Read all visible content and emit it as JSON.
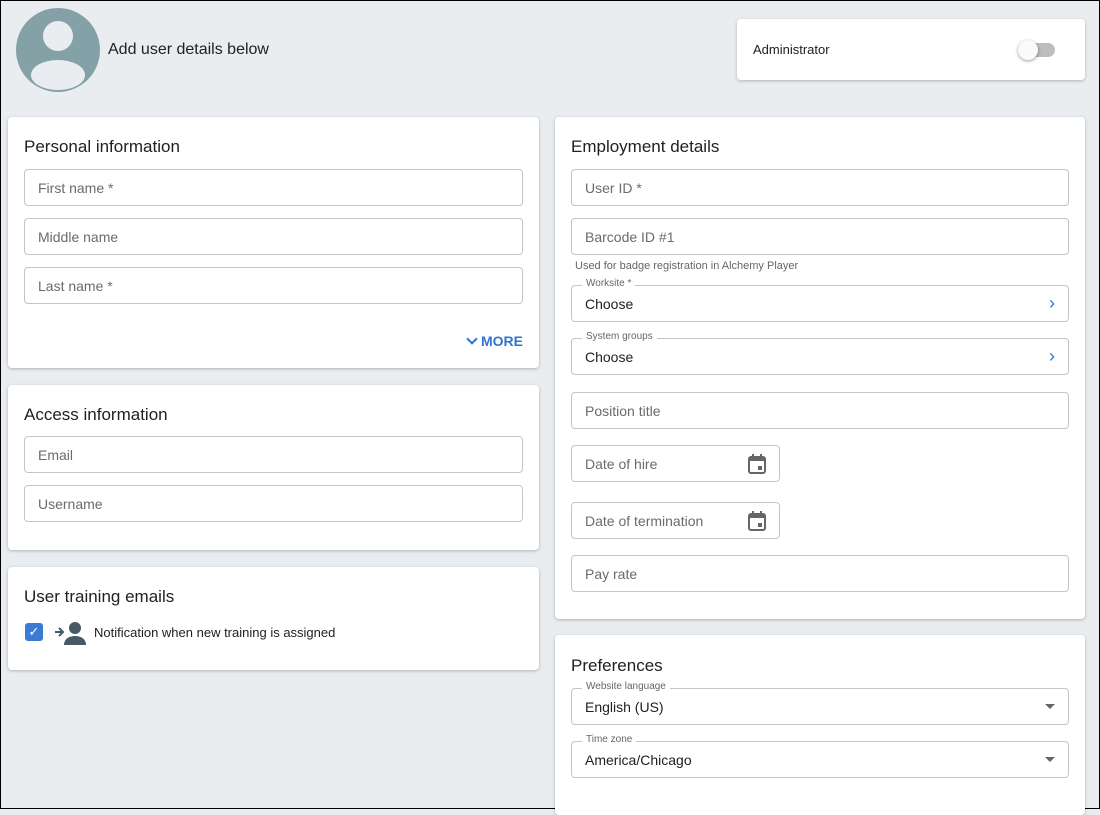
{
  "header": {
    "title": "Add user details below",
    "admin_label": "Administrator",
    "admin_on": false
  },
  "personal": {
    "title": "Personal information",
    "first": "First name *",
    "middle": "Middle name",
    "last": "Last name *",
    "more": "MORE"
  },
  "access": {
    "title": "Access information",
    "email": "Email",
    "username": "Username"
  },
  "training": {
    "title": "User training emails",
    "notify": "Notification when new training is assigned",
    "checked": true
  },
  "employment": {
    "title": "Employment details",
    "user_id": "User ID *",
    "barcode": "Barcode ID #1",
    "barcode_help": "Used for badge registration in Alchemy Player",
    "worksite_label": "Worksite *",
    "worksite_value": "Choose",
    "groups_label": "System groups",
    "groups_value": "Choose",
    "position": "Position title",
    "hire": "Date of hire",
    "termination": "Date of termination",
    "pay": "Pay rate"
  },
  "preferences": {
    "title": "Preferences",
    "lang_label": "Website language",
    "lang_value": "English (US)",
    "tz_label": "Time zone",
    "tz_value": "America/Chicago"
  },
  "colors": {
    "accent": "#2f74d0",
    "avatar": "#84a1a8",
    "background": "#e9edf0"
  }
}
